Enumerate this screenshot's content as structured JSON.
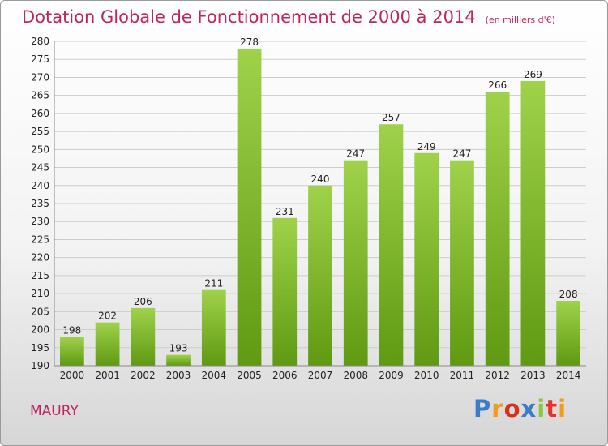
{
  "title": "Dotation Globale de Fonctionnement de 2000 à 2014",
  "unit": "(en milliers d'€)",
  "town": "MAURY",
  "logo": "Proxiti",
  "colors": {
    "title": "#c0245e",
    "bar_light": "#9fd24a",
    "bar_dark": "#5f9a12",
    "grid": "#cccccc",
    "logo": [
      "#3a7cc9",
      "#f29a1d",
      "#d2331f",
      "#3a7cc9",
      "#8cc63f",
      "#e6332a",
      "#f29a1d"
    ]
  },
  "chart_data": {
    "type": "bar",
    "title": "Dotation Globale de Fonctionnement de 2000 à 2014",
    "categories": [
      "2000",
      "2001",
      "2002",
      "2003",
      "2004",
      "2005",
      "2006",
      "2007",
      "2008",
      "2009",
      "2010",
      "2011",
      "2012",
      "2013",
      "2014"
    ],
    "values": [
      198,
      202,
      206,
      193,
      211,
      278,
      231,
      240,
      247,
      257,
      249,
      247,
      266,
      269,
      208
    ],
    "xlabel": "",
    "ylabel": "",
    "ylim": [
      190,
      280
    ],
    "yticks": [
      190,
      195,
      200,
      205,
      210,
      215,
      220,
      225,
      230,
      235,
      240,
      245,
      250,
      255,
      260,
      265,
      270,
      275,
      280
    ],
    "grid": true,
    "legend": "none"
  }
}
